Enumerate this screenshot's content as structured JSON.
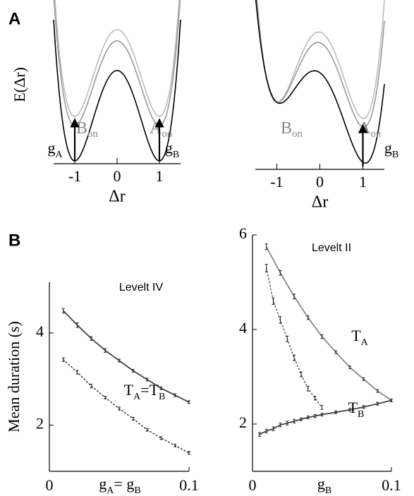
{
  "panel_labels": [
    "A",
    "B"
  ],
  "chart_data": [
    {
      "type": "potential",
      "ylabel": "E(Δr)",
      "xlabel": "Δr",
      "xlim": [
        -1.5,
        1.5
      ],
      "xticks": [
        -1,
        0,
        1
      ],
      "well_labels": [
        [
          {
            "text": "B"
          },
          {
            "text": "on",
            "sub": true
          }
        ],
        [
          {
            "text": "A"
          },
          {
            "text": "on",
            "sub": true
          }
        ]
      ],
      "arrow_labels": [
        [
          {
            "text": "g"
          },
          {
            "text": "A",
            "sub": true
          }
        ],
        [
          {
            "text": "g"
          },
          {
            "text": "B",
            "sub": true
          }
        ]
      ]
    },
    {
      "type": "potential",
      "xlabel": "Δr",
      "xlim": [
        -1.5,
        1.5
      ],
      "xticks": [
        -1,
        0,
        1
      ],
      "well_labels": [
        [
          {
            "text": "B"
          },
          {
            "text": "on",
            "sub": true
          }
        ],
        [
          {
            "text": "A"
          },
          {
            "text": "on",
            "sub": true
          }
        ]
      ],
      "arrow_labels": [
        [
          {
            "text": "g"
          },
          {
            "text": "B",
            "sub": true
          }
        ]
      ]
    },
    {
      "type": "errorbar",
      "title": "Levelt IV",
      "ylabel": "Mean duration (s)",
      "xlabel": [
        {
          "text": "g"
        },
        {
          "text": "A",
          "sub": true
        },
        {
          "text": "= g"
        },
        {
          "text": "B",
          "sub": true
        }
      ],
      "xlim": [
        0,
        0.1
      ],
      "ylim": [
        1,
        5.1
      ],
      "xticks": [
        0,
        0.1
      ],
      "yticks": [
        2,
        4
      ],
      "series": [
        {
          "color": "#444444",
          "dash": false,
          "x": [
            0.01,
            0.02,
            0.03,
            0.04,
            0.05,
            0.06,
            0.07,
            0.08,
            0.09,
            0.1
          ],
          "values": [
            4.48,
            4.17,
            3.88,
            3.62,
            3.4,
            3.18,
            2.99,
            2.8,
            2.65,
            2.5
          ],
          "errors": [
            0.05,
            0.05,
            0.04,
            0.04,
            0.03,
            0.03,
            0.03,
            0.03,
            0.03,
            0.03
          ]
        },
        {
          "color": "#444444",
          "dash": true,
          "x": [
            0.01,
            0.02,
            0.03,
            0.04,
            0.05,
            0.06,
            0.07,
            0.08,
            0.09,
            0.1
          ],
          "values": [
            3.42,
            3.15,
            2.85,
            2.6,
            2.36,
            2.14,
            1.9,
            1.72,
            1.56,
            1.4
          ],
          "errors": [
            0.04,
            0.04,
            0.04,
            0.03,
            0.03,
            0.03,
            0.03,
            0.03,
            0.03,
            0.03
          ]
        }
      ],
      "annotations": [
        [
          {
            "text": "T"
          },
          {
            "text": "A",
            "sub": true
          },
          {
            "text": "=T"
          },
          {
            "text": "B",
            "sub": true
          }
        ]
      ]
    },
    {
      "type": "errorbar",
      "title": "Levelt II",
      "xlabel": [
        {
          "text": "g"
        },
        {
          "text": "B",
          "sub": true
        }
      ],
      "xlim": [
        0,
        0.1
      ],
      "ylim": [
        1,
        6
      ],
      "xticks": [
        0,
        0.1
      ],
      "yticks": [
        2,
        4,
        6
      ],
      "series": [
        {
          "color": "#888888",
          "dash": false,
          "x": [
            0.01,
            0.02,
            0.03,
            0.04,
            0.05,
            0.06,
            0.07,
            0.08,
            0.09,
            0.1
          ],
          "values": [
            5.75,
            5.2,
            4.7,
            4.25,
            3.85,
            3.52,
            3.2,
            2.95,
            2.7,
            2.5
          ],
          "errors": [
            0.06,
            0.05,
            0.05,
            0.04,
            0.04,
            0.03,
            0.03,
            0.03,
            0.03,
            0.03
          ]
        },
        {
          "color": "#666666",
          "dash": true,
          "x": [
            0.01,
            0.015,
            0.02,
            0.025,
            0.03,
            0.035,
            0.04,
            0.045,
            0.05
          ],
          "values": [
            5.3,
            4.6,
            4.2,
            3.8,
            3.4,
            3.05,
            2.75,
            2.55,
            2.35
          ],
          "errors": [
            0.08,
            0.07,
            0.07,
            0.06,
            0.06,
            0.05,
            0.05,
            0.04,
            0.04
          ]
        },
        {
          "color": "#444444",
          "dash": false,
          "x": [
            0.005,
            0.01,
            0.015,
            0.02,
            0.025,
            0.03,
            0.035,
            0.04,
            0.045,
            0.05,
            0.06,
            0.07,
            0.08,
            0.09,
            0.1
          ],
          "values": [
            1.78,
            1.85,
            1.9,
            1.98,
            2.02,
            2.06,
            2.1,
            2.14,
            2.17,
            2.2,
            2.25,
            2.3,
            2.36,
            2.43,
            2.5
          ],
          "errors": [
            0.04,
            0.04,
            0.04,
            0.04,
            0.04,
            0.04,
            0.03,
            0.03,
            0.03,
            0.03,
            0.03,
            0.03,
            0.03,
            0.03,
            0.03
          ]
        }
      ],
      "annotations": [
        [
          {
            "text": "T"
          },
          {
            "text": "A",
            "sub": true
          }
        ],
        [
          {
            "text": "T"
          },
          {
            "text": "B",
            "sub": true
          }
        ]
      ]
    }
  ]
}
